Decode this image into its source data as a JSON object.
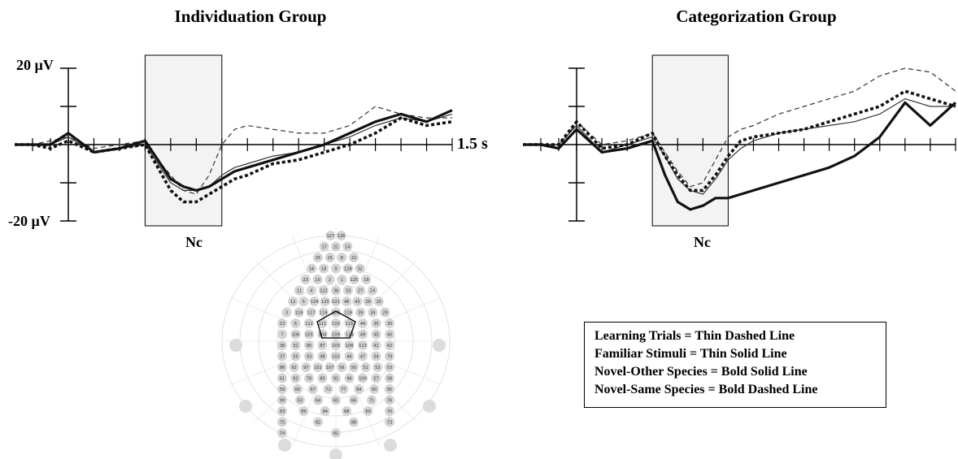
{
  "chart_data": [
    {
      "type": "line",
      "title": "Individuation Group",
      "x_unit": "s",
      "y_unit": "µV",
      "xlim": [
        -0.3,
        1.5
      ],
      "ylim": [
        -20,
        20
      ],
      "y_tick_labels": [
        "20 µV",
        "-20 µV"
      ],
      "x_end_label": "1.5 s",
      "window_label": "Nc",
      "window": [
        0.3,
        0.6
      ],
      "series": [
        {
          "key": "learning",
          "style": "thin-dashed",
          "x": [
            -0.3,
            -0.2,
            -0.1,
            0.0,
            0.1,
            0.2,
            0.3,
            0.35,
            0.4,
            0.45,
            0.5,
            0.55,
            0.6,
            0.65,
            0.7,
            0.8,
            0.9,
            1.0,
            1.1,
            1.2,
            1.3,
            1.4,
            1.5
          ],
          "y": [
            0,
            0,
            1,
            2,
            -1,
            0,
            1,
            -4,
            -8,
            -12,
            -13,
            -8,
            0,
            4,
            5,
            4,
            3,
            3,
            5,
            10,
            8,
            7,
            7
          ]
        },
        {
          "key": "familiar",
          "style": "thin-solid",
          "x": [
            -0.3,
            -0.2,
            -0.1,
            0.0,
            0.1,
            0.2,
            0.3,
            0.35,
            0.4,
            0.45,
            0.5,
            0.55,
            0.6,
            0.65,
            0.7,
            0.8,
            0.9,
            1.0,
            1.1,
            1.2,
            1.3,
            1.4,
            1.5
          ],
          "y": [
            0,
            0,
            0,
            2,
            -2,
            -1,
            0,
            -5,
            -10,
            -12,
            -12,
            -11,
            -8,
            -6,
            -5,
            -3,
            -2,
            0,
            2,
            5,
            7,
            6,
            8
          ]
        },
        {
          "key": "novel_other",
          "style": "bold-solid",
          "x": [
            -0.3,
            -0.2,
            -0.1,
            0.0,
            0.1,
            0.2,
            0.3,
            0.35,
            0.4,
            0.45,
            0.5,
            0.55,
            0.6,
            0.65,
            0.7,
            0.8,
            0.9,
            1.0,
            1.1,
            1.2,
            1.3,
            1.4,
            1.5
          ],
          "y": [
            0,
            0,
            0,
            3,
            -2,
            -1,
            1,
            -4,
            -9,
            -11,
            -12,
            -11,
            -9,
            -7,
            -6,
            -4,
            -2,
            0,
            3,
            6,
            8,
            6,
            9
          ]
        },
        {
          "key": "novel_same",
          "style": "bold-dashed",
          "x": [
            -0.3,
            -0.2,
            -0.1,
            0.0,
            0.1,
            0.2,
            0.3,
            0.35,
            0.4,
            0.45,
            0.5,
            0.55,
            0.6,
            0.65,
            0.7,
            0.8,
            0.9,
            1.0,
            1.1,
            1.2,
            1.3,
            1.4,
            1.5
          ],
          "y": [
            0,
            0,
            -1,
            1,
            -2,
            -1,
            0,
            -6,
            -12,
            -15,
            -15,
            -13,
            -11,
            -9,
            -8,
            -5,
            -4,
            -2,
            0,
            3,
            7,
            5,
            6
          ]
        }
      ]
    },
    {
      "type": "line",
      "title": "Categorization Group",
      "x_unit": "s",
      "y_unit": "µV",
      "xlim": [
        -0.3,
        1.5
      ],
      "ylim": [
        -20,
        20
      ],
      "window_label": "Nc",
      "window": [
        0.3,
        0.6
      ],
      "series": [
        {
          "key": "learning",
          "style": "thin-dashed",
          "x": [
            -0.3,
            -0.2,
            -0.1,
            0.0,
            0.1,
            0.2,
            0.3,
            0.35,
            0.4,
            0.45,
            0.5,
            0.55,
            0.6,
            0.65,
            0.7,
            0.8,
            0.9,
            1.0,
            1.1,
            1.2,
            1.3,
            1.4,
            1.5
          ],
          "y": [
            0,
            0,
            -1,
            6,
            0,
            1,
            3,
            -2,
            -7,
            -11,
            -10,
            -4,
            2,
            4,
            5,
            8,
            10,
            12,
            14,
            18,
            20,
            19,
            14
          ]
        },
        {
          "key": "familiar",
          "style": "thin-solid",
          "x": [
            -0.3,
            -0.2,
            -0.1,
            0.0,
            0.1,
            0.2,
            0.3,
            0.35,
            0.4,
            0.45,
            0.5,
            0.55,
            0.6,
            0.65,
            0.7,
            0.8,
            0.9,
            1.0,
            1.1,
            1.2,
            1.3,
            1.4,
            1.5
          ],
          "y": [
            0,
            0,
            0,
            5,
            -2,
            0,
            2,
            -3,
            -9,
            -12,
            -13,
            -9,
            -4,
            -1,
            1,
            3,
            4,
            5,
            6,
            8,
            12,
            10,
            10
          ]
        },
        {
          "key": "novel_other",
          "style": "bold-solid",
          "x": [
            -0.3,
            -0.2,
            -0.1,
            0.0,
            0.1,
            0.2,
            0.3,
            0.35,
            0.4,
            0.45,
            0.5,
            0.55,
            0.6,
            0.65,
            0.7,
            0.8,
            0.9,
            1.0,
            1.1,
            1.2,
            1.3,
            1.4,
            1.5
          ],
          "y": [
            0,
            0,
            -1,
            4,
            -2,
            -1,
            1,
            -8,
            -15,
            -17,
            -16,
            -14,
            -14,
            -13,
            -12,
            -10,
            -8,
            -6,
            -3,
            2,
            11,
            5,
            11
          ]
        },
        {
          "key": "novel_same",
          "style": "bold-dashed",
          "x": [
            -0.3,
            -0.2,
            -0.1,
            0.0,
            0.1,
            0.2,
            0.3,
            0.35,
            0.4,
            0.45,
            0.5,
            0.55,
            0.6,
            0.65,
            0.7,
            0.8,
            0.9,
            1.0,
            1.1,
            1.2,
            1.3,
            1.4,
            1.5
          ],
          "y": [
            0,
            0,
            0,
            6,
            -1,
            0,
            3,
            -3,
            -8,
            -12,
            -12,
            -8,
            -3,
            1,
            2,
            3,
            4,
            6,
            8,
            10,
            14,
            12,
            10
          ]
        }
      ]
    }
  ],
  "legend": [
    {
      "key": "learning",
      "text": "Learning Trials = Thin Dashed Line"
    },
    {
      "key": "familiar",
      "text": "Familiar Stimuli = Thin Solid Line"
    },
    {
      "key": "novel_other",
      "text": "Novel-Other Species = Bold Solid Line"
    },
    {
      "key": "novel_same",
      "text": "Novel-Same Species = Bold Dashed Line"
    }
  ],
  "electrode_map": {
    "highlighted_cluster": [
      "6",
      "7",
      "13",
      "106",
      "112",
      "Vref"
    ],
    "labels": [
      "127",
      "126",
      "17",
      "21",
      "14",
      "25",
      "15",
      "8",
      "22",
      "16",
      "18",
      "9",
      "128",
      "32",
      "23",
      "10",
      "2",
      "1",
      "125",
      "19",
      "11",
      "4",
      "122",
      "38",
      "33",
      "27",
      "24",
      "12",
      "5",
      "124",
      "123",
      "121",
      "48",
      "43",
      "28",
      "20",
      "3",
      "118",
      "117",
      "116",
      "120",
      "119",
      "39",
      "34",
      "29",
      "13",
      "6",
      "112",
      "111",
      "110",
      "115",
      "44",
      "35",
      "30",
      "7",
      "106",
      "105",
      "104",
      "109",
      "114",
      "49",
      "45",
      "40",
      "36",
      "31",
      "80",
      "87",
      "103",
      "108",
      "113",
      "41",
      "42",
      "37",
      "55",
      "93",
      "98",
      "102",
      "46",
      "47",
      "54",
      "79",
      "86",
      "92",
      "97",
      "101",
      "107",
      "56",
      "50",
      "51",
      "52",
      "53",
      "61",
      "62",
      "78",
      "85",
      "91",
      "96",
      "100",
      "57",
      "58",
      "59",
      "60",
      "67",
      "72",
      "77",
      "84",
      "90",
      "95",
      "99",
      "63",
      "64",
      "65",
      "66",
      "71",
      "76",
      "83",
      "89",
      "94",
      "68",
      "69",
      "70",
      "75",
      "82",
      "88",
      "73",
      "74",
      "81"
    ]
  }
}
